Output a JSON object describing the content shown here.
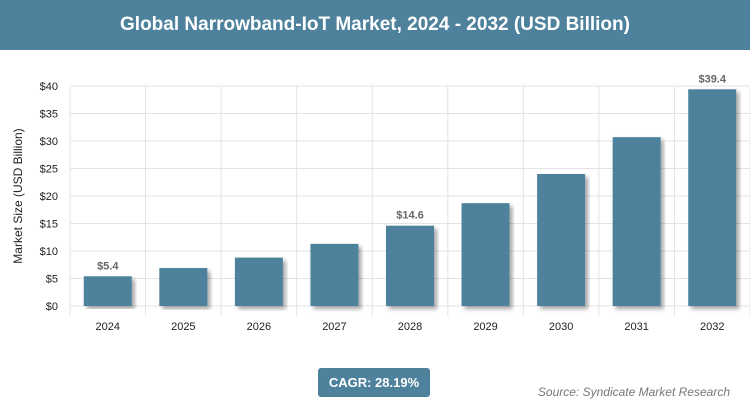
{
  "title": "Global Narrowband-IoT Market, 2024 - 2032 (USD Billion)",
  "cagr": "CAGR: 28.19%",
  "source": "Source: Syndicate Market Research",
  "chart_data": {
    "type": "bar",
    "title": "Global Narrowband-IoT Market, 2024 - 2032 (USD Billion)",
    "ylabel": "Market Size (USD Billion)",
    "xlabel": "",
    "categories": [
      "2024",
      "2025",
      "2026",
      "2027",
      "2028",
      "2029",
      "2030",
      "2031",
      "2032"
    ],
    "values": [
      5.4,
      6.9,
      8.8,
      11.3,
      14.6,
      18.7,
      24.0,
      30.7,
      39.4
    ],
    "data_labels": {
      "0": "$5.4",
      "4": "$14.6",
      "8": "$39.4"
    },
    "yticks": [
      "$0",
      "$5",
      "$10",
      "$15",
      "$20",
      "$25",
      "$30",
      "$35",
      "$40"
    ],
    "ylim": [
      0,
      40
    ],
    "grid": true,
    "bar_color": "#4d819c"
  }
}
